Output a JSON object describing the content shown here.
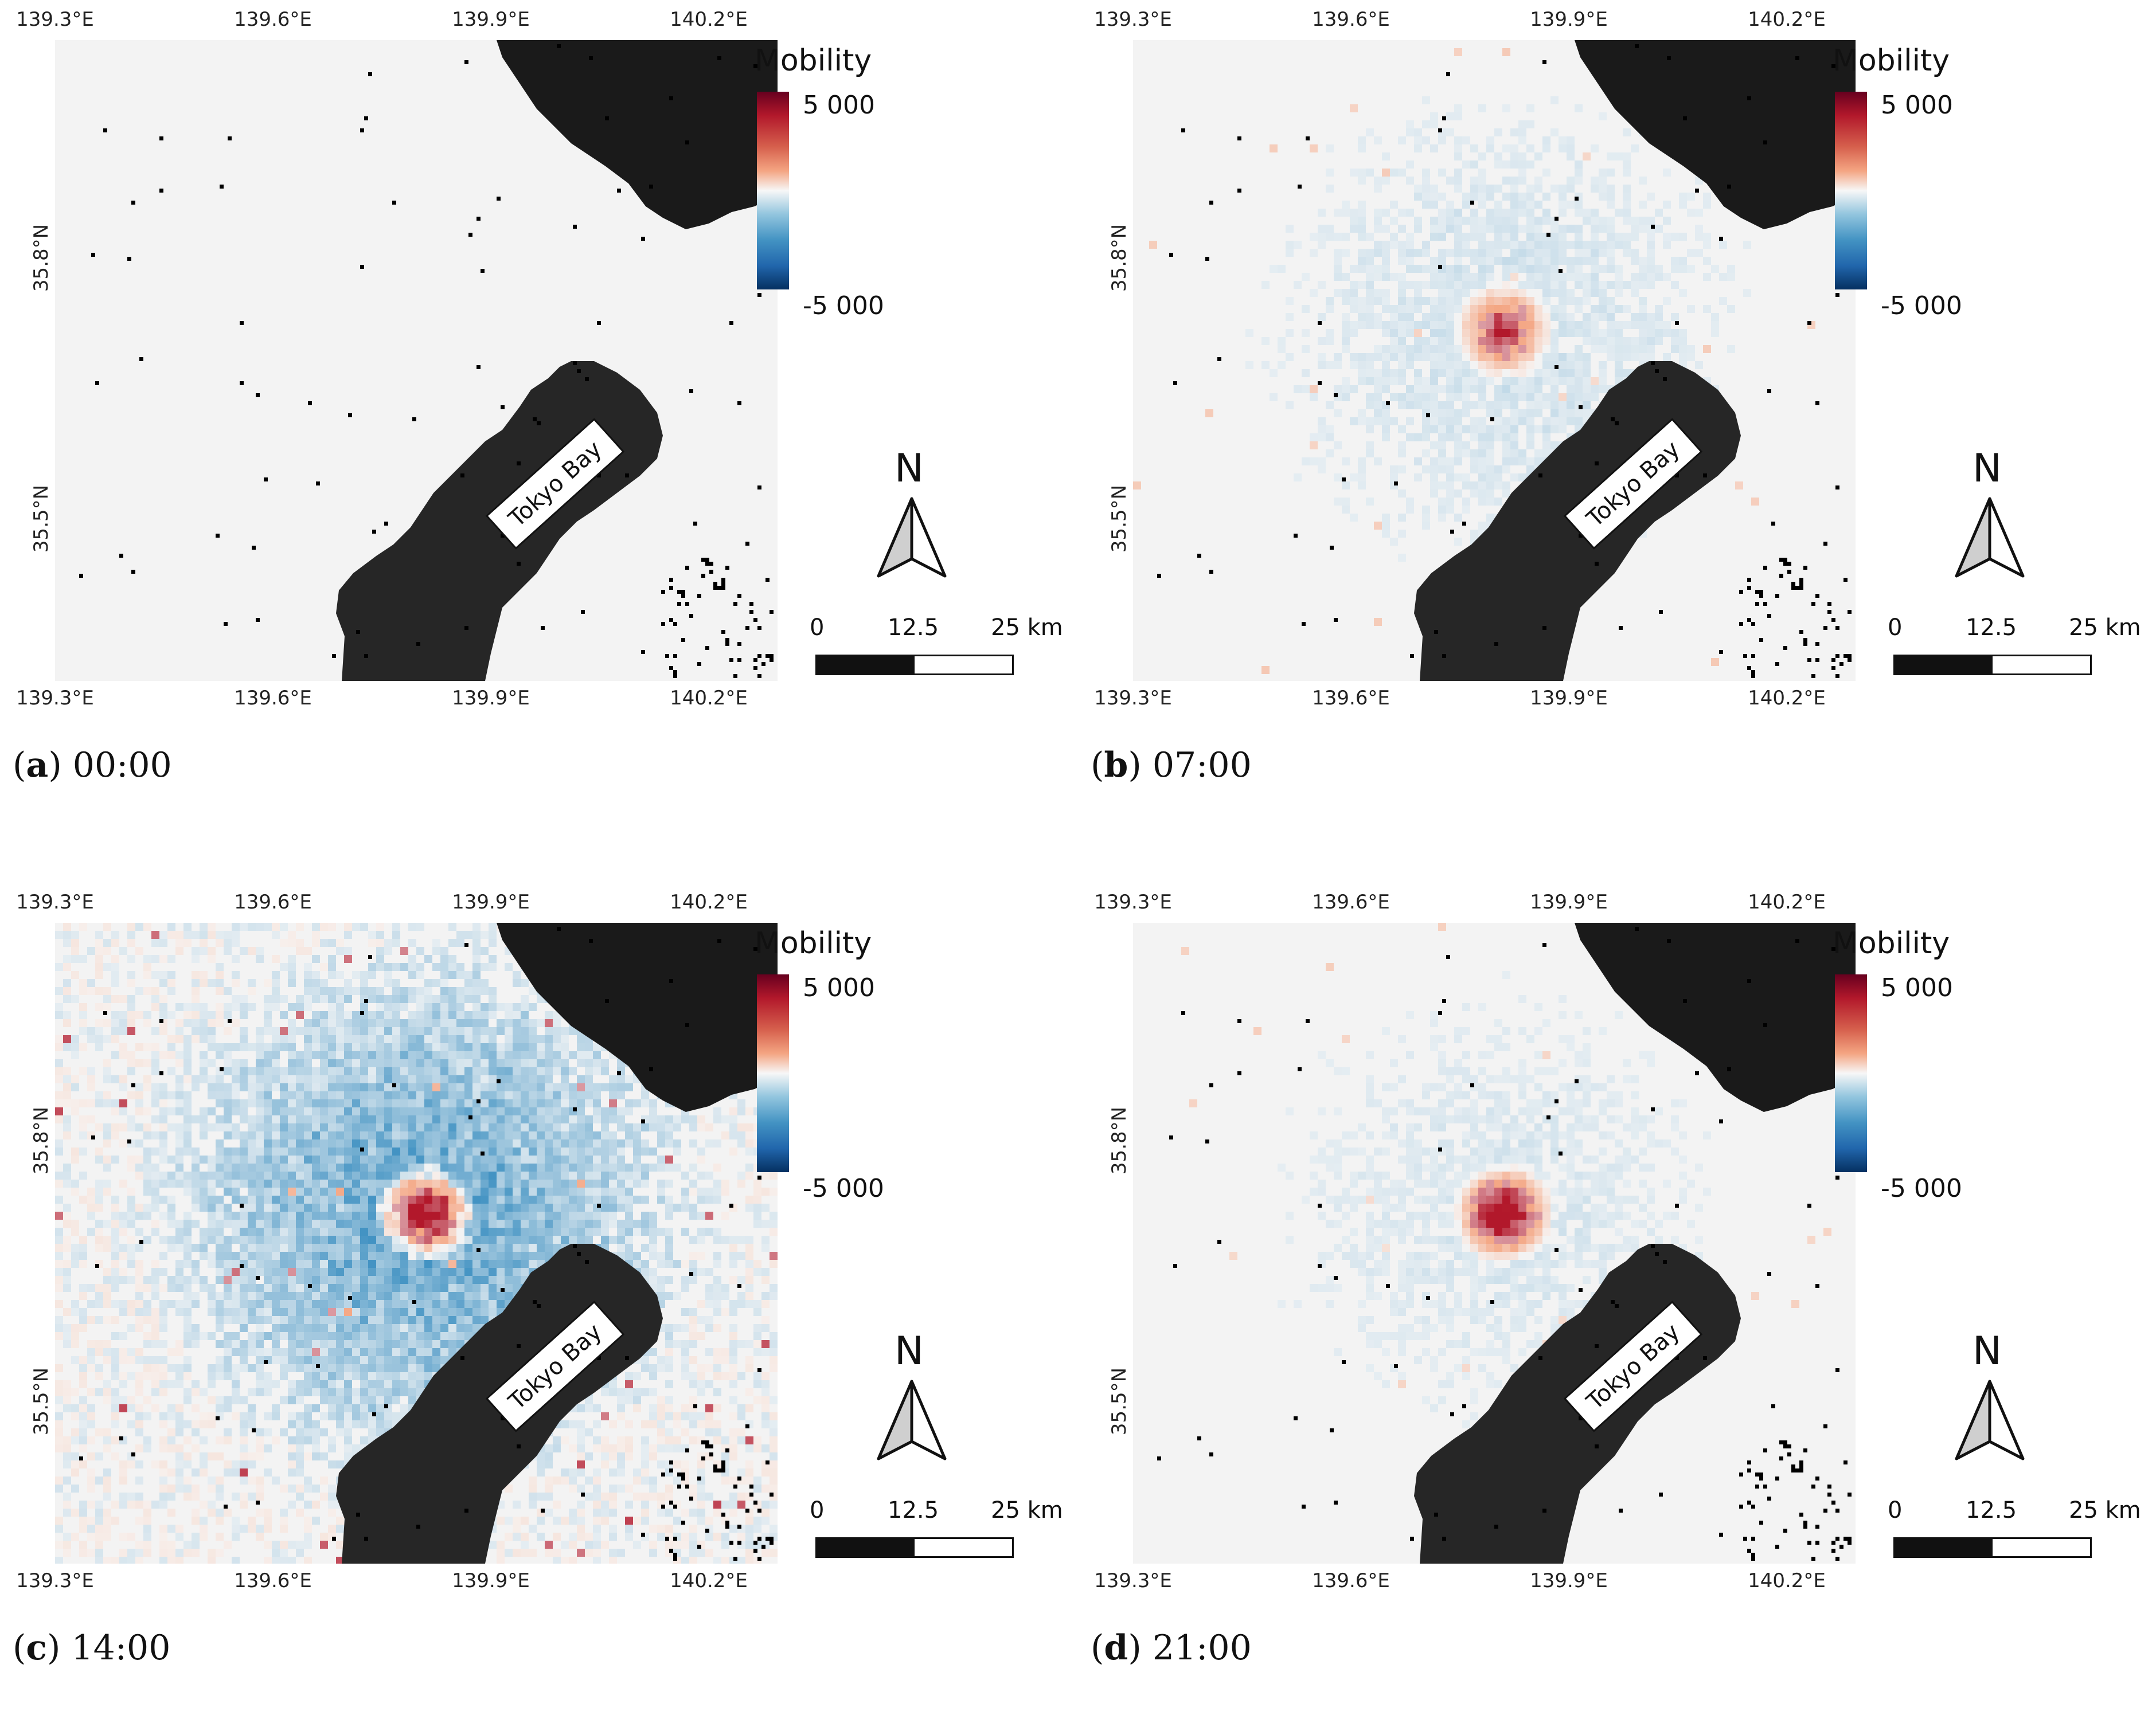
{
  "axes": {
    "lon_ticks": [
      "139.3°E",
      "139.6°E",
      "139.9°E",
      "140.2°E"
    ],
    "lat_ticks": [
      "35.8°N",
      "35.5°N"
    ]
  },
  "legend": {
    "title": "Mobility",
    "max_label": "5 000",
    "min_label": "-5 000",
    "colormap": [
      "#67001f",
      "#b2182b",
      "#d6604d",
      "#f4a582",
      "#f7f7f7",
      "#92c5de",
      "#4393c3",
      "#2166ac",
      "#053061"
    ]
  },
  "north_arrow": {
    "letter": "N"
  },
  "scale_bar": {
    "labels": [
      "0",
      "12.5",
      "25 km"
    ]
  },
  "map_label": "Tokyo Bay",
  "colors": {
    "water": "#262626",
    "land_dark": "#1a1a1a",
    "background": "#f3f3f3",
    "nodata": "#000000"
  },
  "panels": [
    {
      "letter": "a",
      "time": "00:00",
      "intensity": 0.05,
      "blue": 0.0,
      "hotspot": 0.0
    },
    {
      "letter": "b",
      "time": "07:00",
      "intensity": 0.35,
      "blue": 0.25,
      "hotspot": 0.6
    },
    {
      "letter": "c",
      "time": "14:00",
      "intensity": 1.0,
      "blue": 1.0,
      "hotspot": 1.0
    },
    {
      "letter": "d",
      "time": "21:00",
      "intensity": 0.3,
      "blue": 0.2,
      "hotspot": 0.8
    }
  ]
}
